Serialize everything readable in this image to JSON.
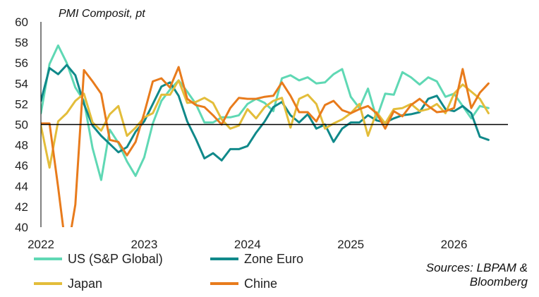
{
  "chart_data": {
    "type": "line",
    "title": "PMI Composit, pt",
    "xlabel": "",
    "ylabel": "",
    "ylim": [
      40,
      60
    ],
    "y_ticks": [
      "40",
      "42",
      "44",
      "46",
      "48",
      "50",
      "52",
      "54",
      "56",
      "58",
      "60"
    ],
    "x_ticks": [
      "2022",
      "2023",
      "2024",
      "2025",
      "2026"
    ],
    "grid": false,
    "reference_line": 50,
    "legend_position": "bottom",
    "source": [
      "Sources: LBPAM &",
      "Bloomberg"
    ],
    "x": [
      "2022-01",
      "2022-02",
      "2022-03",
      "2022-04",
      "2022-05",
      "2022-06",
      "2022-07",
      "2022-08",
      "2022-09",
      "2022-10",
      "2022-11",
      "2022-12",
      "2023-01",
      "2023-02",
      "2023-03",
      "2023-04",
      "2023-05",
      "2023-06",
      "2023-07",
      "2023-08",
      "2023-09",
      "2023-10",
      "2023-11",
      "2023-12",
      "2024-01",
      "2024-02",
      "2024-03",
      "2024-04",
      "2024-05",
      "2024-06",
      "2024-07",
      "2024-08",
      "2024-09",
      "2024-10",
      "2024-11",
      "2024-12",
      "2025-01",
      "2025-02",
      "2025-03",
      "2025-04",
      "2025-05",
      "2025-06",
      "2025-07",
      "2025-08",
      "2025-09",
      "2025-10",
      "2025-11",
      "2025-12",
      "2026-01",
      "2026-02",
      "2026-03",
      "2026-04",
      "2026-05"
    ],
    "series": [
      {
        "name": "US (S&P Global)",
        "color": "#5fd8b4",
        "values": [
          51.1,
          55.9,
          57.7,
          56.0,
          53.6,
          52.3,
          47.7,
          44.6,
          49.5,
          48.2,
          46.4,
          45.0,
          46.8,
          50.1,
          52.3,
          53.4,
          54.3,
          53.2,
          52.0,
          50.2,
          50.2,
          50.7,
          50.7,
          50.9,
          52.0,
          52.5,
          52.1,
          51.3,
          54.5,
          54.8,
          54.3,
          54.6,
          54.0,
          54.1,
          54.9,
          55.4,
          52.7,
          51.6,
          53.5,
          50.6,
          53.0,
          52.9,
          55.1,
          54.6,
          53.9,
          54.6,
          54.2,
          52.7,
          53.0,
          51.8,
          50.6,
          51.8,
          51.6
        ]
      },
      {
        "name": "Zone Euro",
        "color": "#10898a",
        "values": [
          52.3,
          55.5,
          54.9,
          55.8,
          54.8,
          52.0,
          49.9,
          48.9,
          48.1,
          47.3,
          47.8,
          49.3,
          50.3,
          52.0,
          53.7,
          54.1,
          52.8,
          50.3,
          48.6,
          46.7,
          47.2,
          46.5,
          47.6,
          47.6,
          47.9,
          49.2,
          50.3,
          51.7,
          52.2,
          50.9,
          50.2,
          51.0,
          49.6,
          50.0,
          48.3,
          49.6,
          50.2,
          50.2,
          50.9,
          50.4,
          50.2,
          50.6,
          50.9,
          51.0,
          51.2,
          52.5,
          52.8,
          51.5,
          51.3,
          51.8,
          51.1,
          48.8,
          48.5
        ]
      },
      {
        "name": "Japan",
        "color": "#e3bd3a",
        "values": [
          49.9,
          45.8,
          50.3,
          51.1,
          52.3,
          53.0,
          50.2,
          49.4,
          51.0,
          51.8,
          48.9,
          49.7,
          50.7,
          51.1,
          52.9,
          52.9,
          54.3,
          52.1,
          52.2,
          52.6,
          52.1,
          50.5,
          49.6,
          49.9,
          51.5,
          50.6,
          51.7,
          52.3,
          52.6,
          49.7,
          52.5,
          52.9,
          52.0,
          49.6,
          50.1,
          50.5,
          51.1,
          52.0,
          48.9,
          51.2,
          50.1,
          51.5,
          51.6,
          52.0,
          51.3,
          51.5,
          52.0,
          51.1,
          53.0,
          53.9,
          53.2,
          52.5,
          51.1
        ]
      },
      {
        "name": "Chine",
        "color": "#e87b1c",
        "values": [
          50.1,
          50.1,
          43.9,
          37.2,
          42.2,
          55.3,
          54.2,
          53.0,
          48.5,
          48.3,
          47.0,
          48.3,
          51.1,
          54.2,
          54.5,
          53.6,
          55.6,
          52.5,
          51.9,
          51.7,
          50.9,
          50.0,
          51.6,
          52.6,
          52.5,
          52.5,
          52.7,
          52.8,
          54.1,
          52.8,
          51.2,
          51.2,
          50.3,
          51.9,
          52.3,
          51.4,
          51.1,
          51.5,
          51.8,
          51.1,
          49.6,
          51.3,
          50.8,
          51.9,
          52.5,
          51.8,
          51.2,
          51.3,
          51.6,
          55.4,
          51.6,
          53.1,
          54.0
        ]
      }
    ]
  }
}
